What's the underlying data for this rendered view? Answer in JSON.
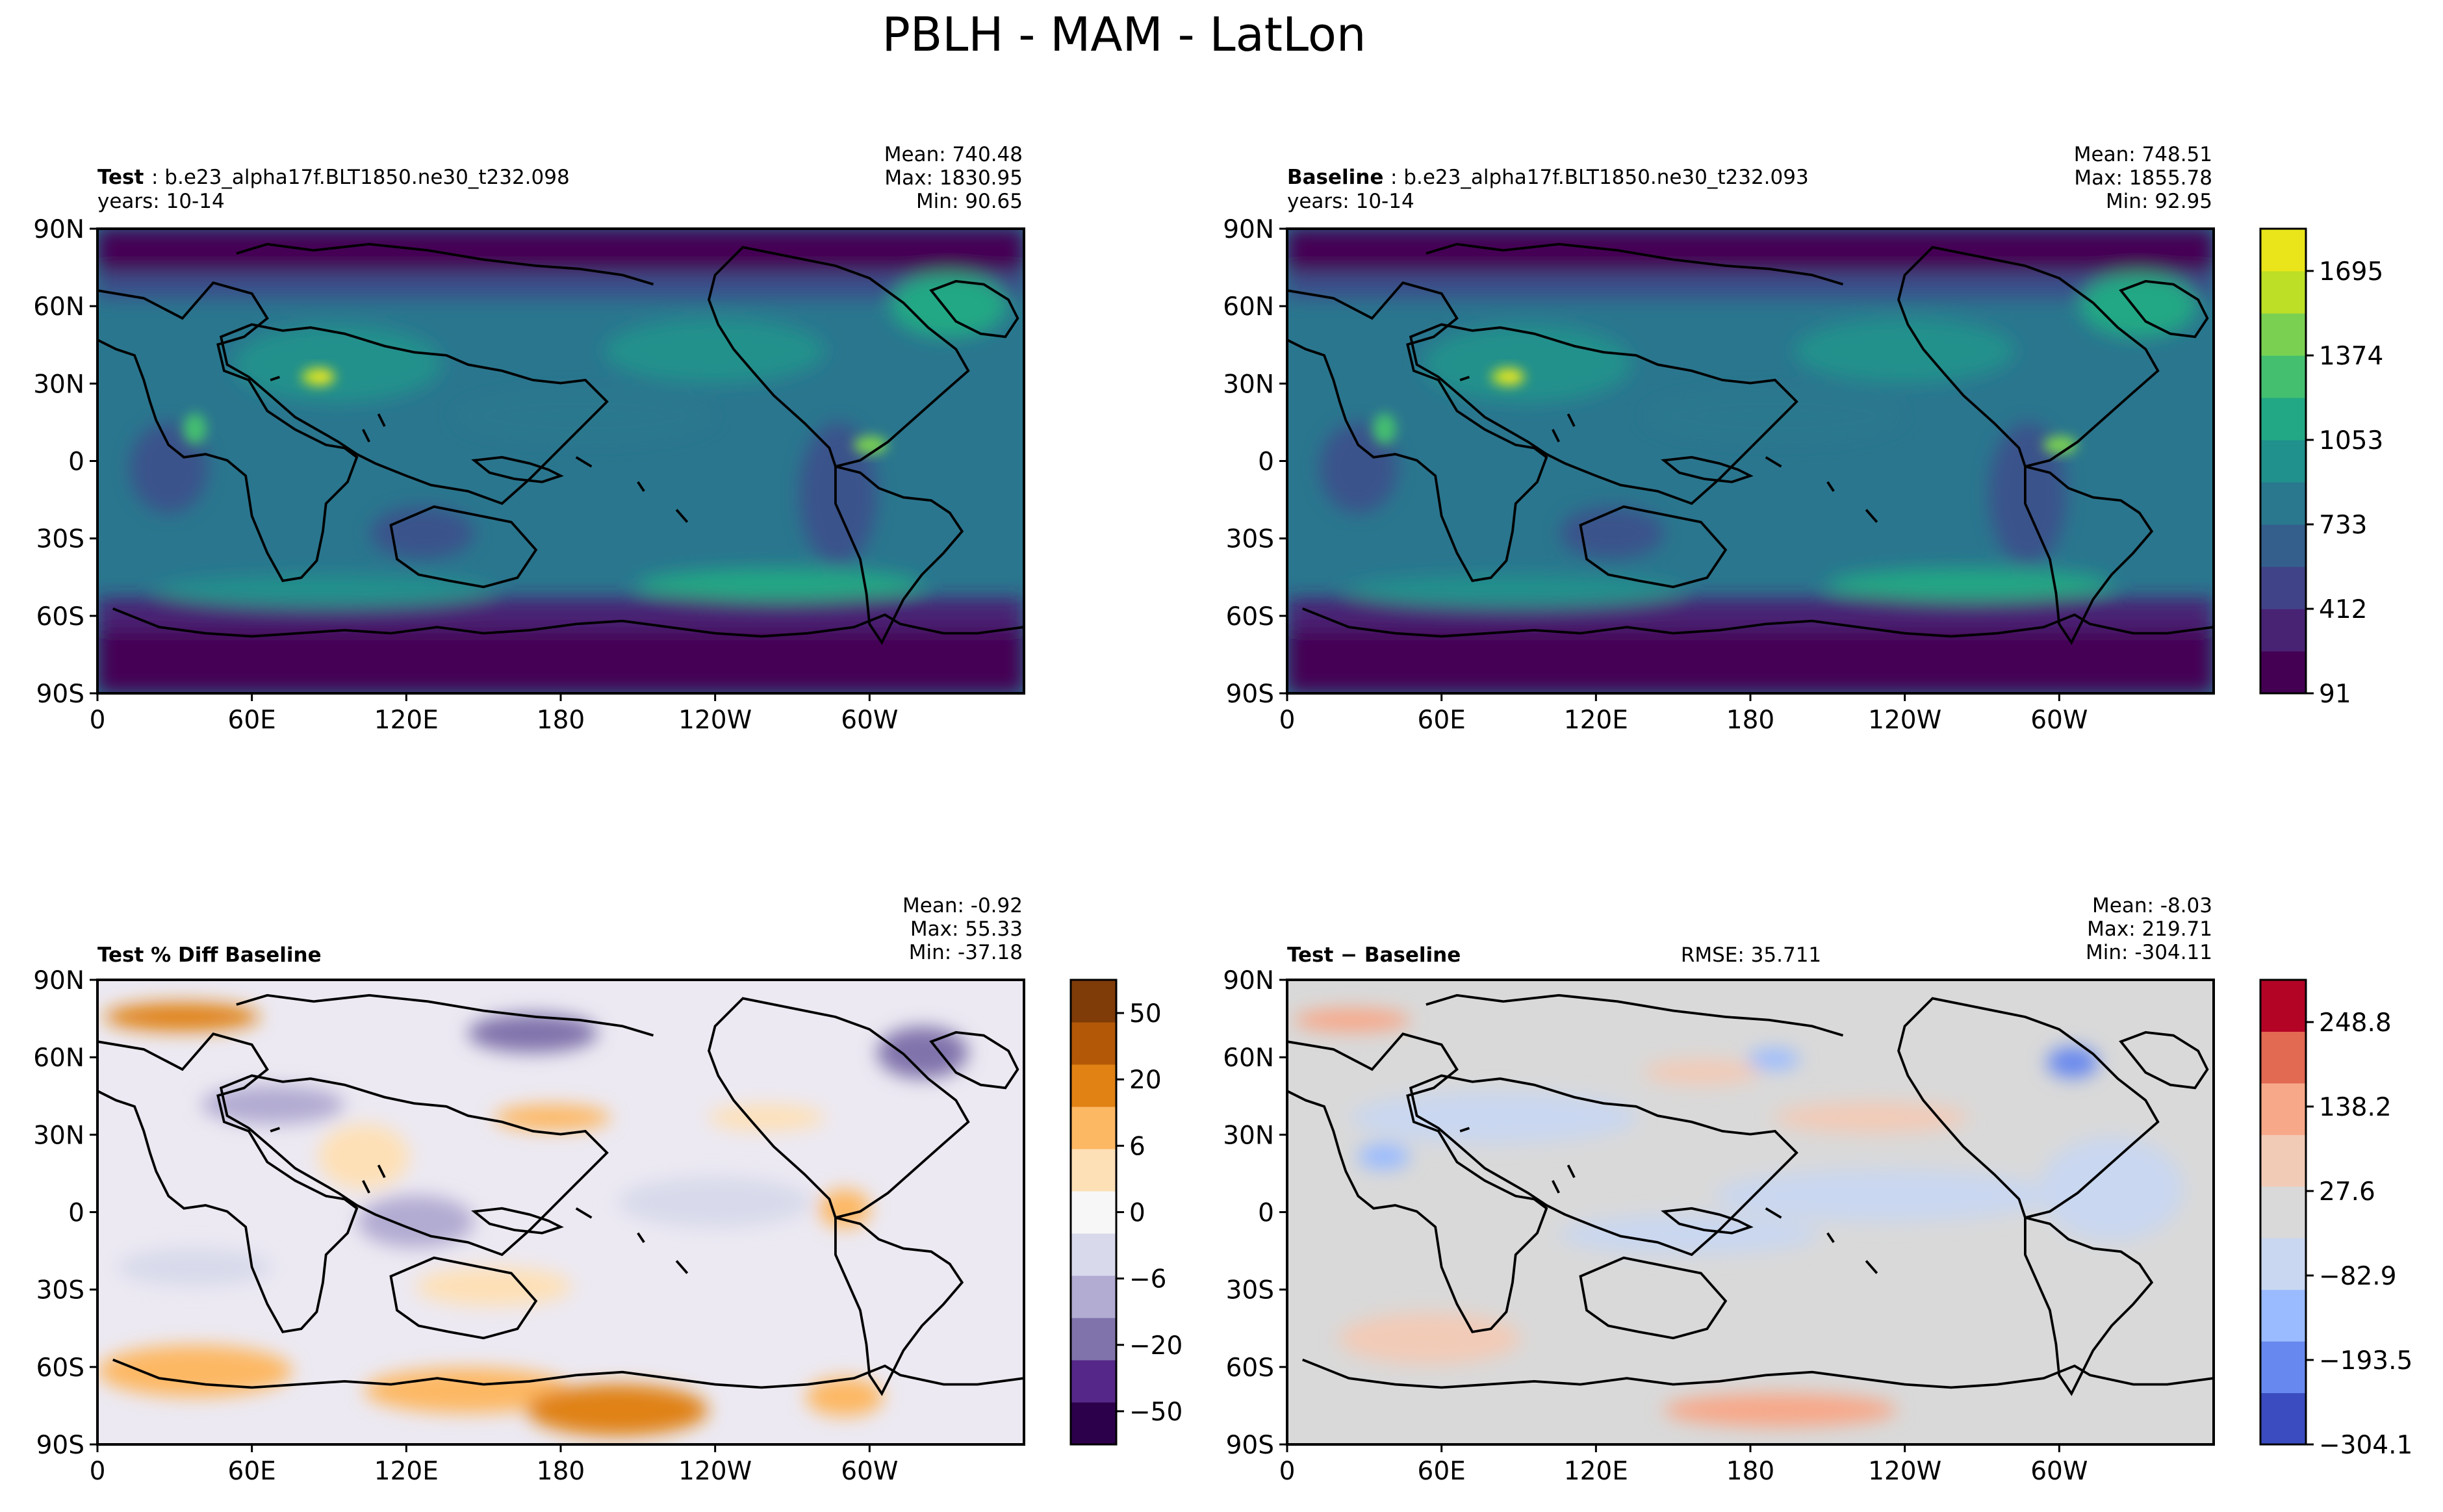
{
  "figure": {
    "title": "PBLH - MAM - LatLon"
  },
  "colors": {
    "land_line": "#000000",
    "diff_background": "#d9d9d9",
    "viridis": [
      "#440154",
      "#482374",
      "#404387",
      "#345f8d",
      "#29788e",
      "#20918c",
      "#22a884",
      "#44bf70",
      "#7ad151",
      "#bddf26",
      "#e9e51a"
    ],
    "puor": [
      "#2d004b",
      "#542788",
      "#8073ac",
      "#b2abd2",
      "#d8daeb",
      "#f7f7f7",
      "#fee0b6",
      "#fdb863",
      "#e08214",
      "#b35806",
      "#7f3b08"
    ],
    "coolwarm": [
      "#3b4cc0",
      "#6788ee",
      "#9abbff",
      "#c9d7f0",
      "#d9d9d9",
      "#f2cbb7",
      "#f7a889",
      "#e26952",
      "#b40426"
    ]
  },
  "chart_data": [
    {
      "type": "heatmap",
      "panel": "test",
      "label_bold": "Test",
      "label_rest": ": b.e23_alpha17f.BLT1850.ne30_t232.098",
      "years": "years: 10-14",
      "stats": {
        "mean": "Mean: 740.48",
        "max": "Max: 1830.95",
        "min": "Min: 90.65"
      },
      "x_ticks": [
        "0",
        "60E",
        "120E",
        "180",
        "120W",
        "60W"
      ],
      "y_ticks": [
        "90N",
        "60N",
        "30N",
        "0",
        "30S",
        "60S",
        "90S"
      ],
      "colormap": "viridis"
    },
    {
      "type": "heatmap",
      "panel": "baseline",
      "label_bold": "Baseline",
      "label_rest": ": b.e23_alpha17f.BLT1850.ne30_t232.093",
      "years": "years: 10-14",
      "stats": {
        "mean": "Mean: 748.51",
        "max": "Max: 1855.78",
        "min": "Min: 92.95"
      },
      "x_ticks": [
        "0",
        "60E",
        "120E",
        "180",
        "120W",
        "60W"
      ],
      "y_ticks": [
        "90N",
        "60N",
        "30N",
        "0",
        "30S",
        "60S",
        "90S"
      ],
      "colormap": "viridis",
      "colorbar_ticks": [
        "91",
        "412",
        "733",
        "1053",
        "1374",
        "1695"
      ]
    },
    {
      "type": "heatmap",
      "panel": "pctdiff",
      "label_bold": "Test % Diff Baseline",
      "stats": {
        "mean": "Mean: -0.92",
        "max": "Max: 55.33",
        "min": "Min: -37.18"
      },
      "x_ticks": [
        "0",
        "60E",
        "120E",
        "180",
        "120W",
        "60W"
      ],
      "y_ticks": [
        "90N",
        "60N",
        "30N",
        "0",
        "30S",
        "60S",
        "90S"
      ],
      "colormap": "puor",
      "colorbar_ticks": [
        "−50",
        "−20",
        "−6",
        "0",
        "6",
        "20",
        "50"
      ]
    },
    {
      "type": "heatmap",
      "panel": "diff",
      "label_bold": "Test − Baseline",
      "rmse": "RMSE: 35.711",
      "stats": {
        "mean": "Mean: -8.03",
        "max": "Max: 219.71",
        "min": "Min: -304.11"
      },
      "x_ticks": [
        "0",
        "60E",
        "120E",
        "180",
        "120W",
        "60W"
      ],
      "y_ticks": [
        "90N",
        "60N",
        "30N",
        "0",
        "30S",
        "60S",
        "90S"
      ],
      "colormap": "coolwarm",
      "colorbar_ticks": [
        "−304.1",
        "−193.5",
        "−82.9",
        "27.6",
        "138.2",
        "248.8"
      ]
    }
  ]
}
